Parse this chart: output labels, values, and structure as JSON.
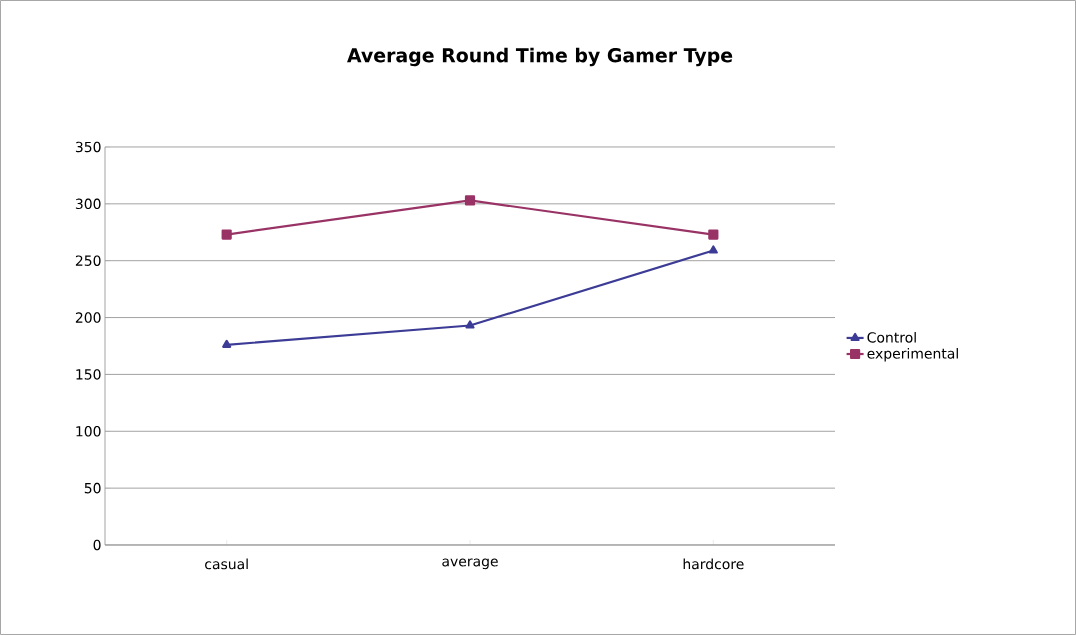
{
  "chart_data": {
    "type": "line",
    "title": "Average Round Time by Gamer Type",
    "categories": [
      "casual",
      "average",
      "hardcore"
    ],
    "series": [
      {
        "name": "Control",
        "color": "#3c3c96",
        "marker": "triangle",
        "values": [
          176,
          193,
          259
        ]
      },
      {
        "name": "experimental",
        "color": "#993366",
        "marker": "square",
        "values": [
          273,
          303,
          273
        ]
      }
    ],
    "ylim": [
      0,
      350
    ],
    "yticks": [
      0,
      50,
      100,
      150,
      200,
      250,
      300,
      350
    ],
    "grid": "y",
    "legend": "right",
    "line_style": "solid"
  }
}
